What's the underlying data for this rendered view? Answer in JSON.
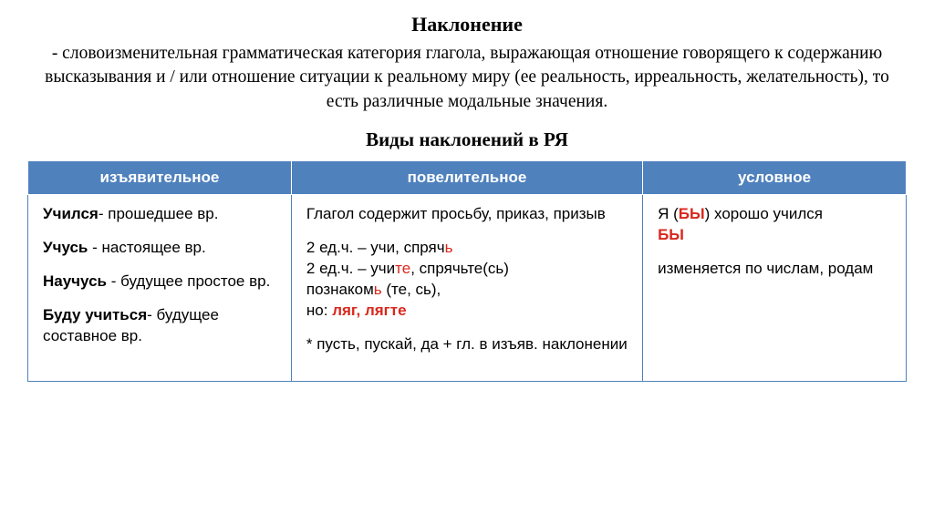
{
  "title": "Наклонение",
  "definition": "- словоизменительная грамматическая категория глагола, выражающая отношение говорящего к содержанию высказывания и / или отношение ситуации к реальному миру (ее реальность, ирреальность, желательность), то есть различные модальные значения.",
  "subtitle": "Виды наклонений в РЯ",
  "table": {
    "header_bg": "#4f81bd",
    "header_fg": "#ffffff",
    "highlight_color": "#d9271d",
    "columns": [
      "изъявительное",
      "повелительное",
      "условное"
    ],
    "col1": {
      "r1_b": "Учился",
      "r1_t": "- прошедшее вр.",
      "r2_b": "Учусь",
      "r2_t": " -  настоящее вр.",
      "r3_b": "Научусь",
      "r3_t": " - будущее простое вр.",
      "r4_b": "Буду учиться",
      "r4_t": "- будущее составное вр."
    },
    "col2": {
      "intro": "Глагол содержит просьбу, приказ, призыв",
      "l1a": "2 ед.ч. – учи, спряч",
      "l1b": "ь",
      "l2a": "2 ед.ч. – учи",
      "l2b": "те",
      "l2c": ", спрячьте(сь)",
      "l3a": "познаком",
      "l3b": "ь",
      "l3c": " (те, сь),",
      "l4a": "но: ",
      "l4b": "ляг, лягте",
      "note": "* пусть, пускай, да + гл. в изъяв. наклонении"
    },
    "col3": {
      "l1a": "Я (",
      "l1b": "БЫ",
      "l1c": ") хорошо учился ",
      "l1d": "БЫ",
      "l2": "изменяется по числам, родам"
    }
  }
}
